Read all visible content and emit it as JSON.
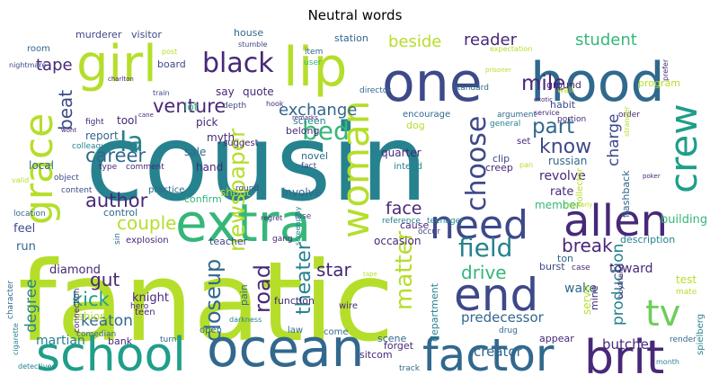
{
  "title": "Neutral words",
  "colors": {
    "background": "#ffffff",
    "palette_viridis": [
      "#440154",
      "#482878",
      "#3e4989",
      "#31688e",
      "#26828e",
      "#1f9e89",
      "#35b779",
      "#6ece58",
      "#b5de2b",
      "#fde725"
    ]
  },
  "words": [
    {
      "text": "cousin",
      "color": "#26828e"
    },
    {
      "text": "fanatic",
      "color": "#b5de2b"
    },
    {
      "text": "ocean",
      "color": "#31688e"
    },
    {
      "text": "school",
      "color": "#1f9e89"
    },
    {
      "text": "factor",
      "color": "#31688e"
    },
    {
      "text": "extra",
      "color": "#35b779"
    },
    {
      "text": "one",
      "color": "#3e4989"
    },
    {
      "text": "hood",
      "color": "#31688e"
    },
    {
      "text": "girl",
      "color": "#b5de2b"
    },
    {
      "text": "lip",
      "color": "#b5de2b"
    },
    {
      "text": "brit",
      "color": "#482878"
    },
    {
      "text": "allen",
      "color": "#482878"
    },
    {
      "text": "need",
      "color": "#3e4989"
    },
    {
      "text": "end",
      "color": "#3e4989"
    },
    {
      "text": "grace",
      "color": "#b5de2b"
    },
    {
      "text": "crew",
      "color": "#1f9e89"
    },
    {
      "text": "tv",
      "color": "#6ece58"
    },
    {
      "text": "woman",
      "color": "#b5de2b"
    },
    {
      "text": "black",
      "color": "#482878"
    },
    {
      "text": "field",
      "color": "#26828e"
    },
    {
      "text": "choose",
      "color": "#3e4989"
    },
    {
      "text": "la",
      "color": "#26828e"
    },
    {
      "text": "bed",
      "color": "#35b779"
    },
    {
      "text": "newspaper",
      "color": "#b5de2b"
    },
    {
      "text": "matter",
      "color": "#b5de2b"
    },
    {
      "text": "closeup",
      "color": "#31688e"
    },
    {
      "text": "road",
      "color": "#482878"
    },
    {
      "text": "theater",
      "color": "#26828e"
    },
    {
      "text": "mile",
      "color": "#482878"
    },
    {
      "text": "part",
      "color": "#31688e"
    },
    {
      "text": "know",
      "color": "#3e4989"
    },
    {
      "text": "venture",
      "color": "#482878"
    },
    {
      "text": "career",
      "color": "#31688e"
    },
    {
      "text": "author",
      "color": "#482878"
    },
    {
      "text": "couple",
      "color": "#b5de2b"
    },
    {
      "text": "kick",
      "color": "#1f9e89"
    },
    {
      "text": "gut",
      "color": "#482878"
    },
    {
      "text": "beat",
      "color": "#3e4989"
    },
    {
      "text": "tape",
      "color": "#482878"
    },
    {
      "text": "beside",
      "color": "#b5de2b"
    },
    {
      "text": "reader",
      "color": "#482878"
    },
    {
      "text": "student",
      "color": "#35b779"
    },
    {
      "text": "exchange",
      "color": "#31688e"
    },
    {
      "text": "drive",
      "color": "#35b779"
    },
    {
      "text": "break",
      "color": "#482878"
    },
    {
      "text": "star",
      "color": "#482878"
    },
    {
      "text": "face",
      "color": "#482878"
    },
    {
      "text": "degree",
      "color": "#26828e"
    },
    {
      "text": "keaton",
      "color": "#31688e"
    },
    {
      "text": "charge",
      "color": "#3e4989"
    },
    {
      "text": "production",
      "color": "#26828e"
    },
    {
      "text": "creator",
      "color": "#31688e"
    },
    {
      "text": "butcher",
      "color": "#482878"
    },
    {
      "text": "predecessor",
      "color": "#31688e"
    },
    {
      "text": "martian",
      "color": "#26828e"
    },
    {
      "text": "wake",
      "color": "#31688e"
    },
    {
      "text": "toward",
      "color": "#482878"
    },
    {
      "text": "diamond",
      "color": "#482878"
    },
    {
      "text": "knight",
      "color": "#482878"
    },
    {
      "text": "fashion",
      "color": "#b5de2b"
    },
    {
      "text": "run",
      "color": "#31688e"
    },
    {
      "text": "feel",
      "color": "#3e4989"
    },
    {
      "text": "local",
      "color": "#31688e"
    },
    {
      "text": "tool",
      "color": "#482878"
    },
    {
      "text": "report",
      "color": "#31688e"
    },
    {
      "text": "colleague",
      "color": "#26828e"
    },
    {
      "text": "hand",
      "color": "#482878"
    },
    {
      "text": "myth",
      "color": "#482878"
    },
    {
      "text": "sale",
      "color": "#31688e"
    },
    {
      "text": "pick",
      "color": "#482878"
    },
    {
      "text": "lot",
      "color": "#35b779"
    },
    {
      "text": "screen",
      "color": "#26828e"
    },
    {
      "text": "belong",
      "color": "#482878"
    },
    {
      "text": "say",
      "color": "#482878"
    },
    {
      "text": "quote",
      "color": "#482878"
    },
    {
      "text": "house",
      "color": "#31688e"
    },
    {
      "text": "visitor",
      "color": "#3e4989"
    },
    {
      "text": "murderer",
      "color": "#3e4989"
    },
    {
      "text": "room",
      "color": "#31688e"
    },
    {
      "text": "nightmare",
      "color": "#3e4989"
    },
    {
      "text": "board",
      "color": "#3e4989"
    },
    {
      "text": "post",
      "color": "#b5de2b"
    },
    {
      "text": "station",
      "color": "#31688e"
    },
    {
      "text": "item",
      "color": "#31688e"
    },
    {
      "text": "user",
      "color": "#35b779"
    },
    {
      "text": "stumble",
      "color": "#3e4989"
    },
    {
      "text": "director",
      "color": "#31688e"
    },
    {
      "text": "standard",
      "color": "#31688e"
    },
    {
      "text": "ground",
      "color": "#482878"
    },
    {
      "text": "habit",
      "color": "#3e4989"
    },
    {
      "text": "program",
      "color": "#b5de2b"
    },
    {
      "text": "russian",
      "color": "#31688e"
    },
    {
      "text": "clip",
      "color": "#3e4989"
    },
    {
      "text": "creep",
      "color": "#482878"
    },
    {
      "text": "revolve",
      "color": "#482878"
    },
    {
      "text": "rate",
      "color": "#482878"
    },
    {
      "text": "flashback",
      "color": "#31688e"
    },
    {
      "text": "building",
      "color": "#35b779"
    },
    {
      "text": "member",
      "color": "#35b779"
    },
    {
      "text": "teenager",
      "color": "#26828e"
    },
    {
      "text": "reference",
      "color": "#26828e"
    },
    {
      "text": "involve",
      "color": "#31688e"
    },
    {
      "text": "shout",
      "color": "#b5de2b"
    },
    {
      "text": "confirm",
      "color": "#35b779"
    },
    {
      "text": "practice",
      "color": "#31688e"
    },
    {
      "text": "comment",
      "color": "#482878"
    },
    {
      "text": "type",
      "color": "#482878"
    },
    {
      "text": "control",
      "color": "#31688e"
    },
    {
      "text": "explosion",
      "color": "#482878"
    },
    {
      "text": "teacher",
      "color": "#3e4989"
    },
    {
      "text": "pain",
      "color": "#31688e"
    },
    {
      "text": "function",
      "color": "#482878"
    },
    {
      "text": "teen",
      "color": "#482878"
    },
    {
      "text": "open",
      "color": "#31688e"
    },
    {
      "text": "law",
      "color": "#31688e"
    },
    {
      "text": "wire",
      "color": "#482878"
    },
    {
      "text": "come",
      "color": "#31688e"
    },
    {
      "text": "scene",
      "color": "#31688e"
    },
    {
      "text": "sitcom",
      "color": "#482878"
    },
    {
      "text": "forget",
      "color": "#482878"
    },
    {
      "text": "track",
      "color": "#31688e"
    },
    {
      "text": "appear",
      "color": "#482878"
    },
    {
      "text": "month",
      "color": "#26828e"
    },
    {
      "text": "render",
      "color": "#31688e"
    },
    {
      "text": "spielberg",
      "color": "#26828e"
    },
    {
      "text": "test",
      "color": "#b5de2b"
    },
    {
      "text": "mate",
      "color": "#b5de2b"
    },
    {
      "text": "case",
      "color": "#482878"
    },
    {
      "text": "mine",
      "color": "#482878"
    },
    {
      "text": "serve",
      "color": "#b5de2b"
    },
    {
      "text": "burst",
      "color": "#3e4989"
    },
    {
      "text": "ton",
      "color": "#31688e"
    },
    {
      "text": "description",
      "color": "#26828e"
    },
    {
      "text": "occasion",
      "color": "#482878"
    },
    {
      "text": "cause",
      "color": "#482878"
    },
    {
      "text": "department",
      "color": "#26828e"
    },
    {
      "text": "drug",
      "color": "#31688e"
    },
    {
      "text": "bank",
      "color": "#482878"
    },
    {
      "text": "turn",
      "color": "#31688e"
    },
    {
      "text": "comedian",
      "color": "#31688e"
    },
    {
      "text": "connection",
      "color": "#482878"
    },
    {
      "text": "cigarette",
      "color": "#26828e"
    },
    {
      "text": "character",
      "color": "#31688e"
    },
    {
      "text": "hero",
      "color": "#482878"
    },
    {
      "text": "location",
      "color": "#31688e"
    },
    {
      "text": "content",
      "color": "#3e4989"
    },
    {
      "text": "object",
      "color": "#3e4989"
    },
    {
      "text": "fight",
      "color": "#482878"
    },
    {
      "text": "suggest",
      "color": "#482878"
    },
    {
      "text": "novel",
      "color": "#31688e"
    },
    {
      "text": "fact",
      "color": "#3e4989"
    },
    {
      "text": "round",
      "color": "#3e4989"
    },
    {
      "text": "quarter",
      "color": "#482878"
    },
    {
      "text": "intend",
      "color": "#26828e"
    },
    {
      "text": "encourage",
      "color": "#31688e"
    },
    {
      "text": "dog",
      "color": "#b5de2b"
    },
    {
      "text": "argument",
      "color": "#31688e"
    },
    {
      "text": "general",
      "color": "#26828e"
    },
    {
      "text": "set",
      "color": "#482878"
    },
    {
      "text": "collector",
      "color": "#b5de2b"
    },
    {
      "text": "portion",
      "color": "#482878"
    },
    {
      "text": "service",
      "color": "#482878"
    },
    {
      "text": "exotic",
      "color": "#482878"
    },
    {
      "text": "order",
      "color": "#482878"
    },
    {
      "text": "prefer",
      "color": "#482878"
    },
    {
      "text": "expectation",
      "color": "#b5de2b"
    },
    {
      "text": "prisoner",
      "color": "#b5de2b"
    },
    {
      "text": "wall",
      "color": "#b5de2b"
    },
    {
      "text": "train",
      "color": "#3e4989"
    },
    {
      "text": "depth",
      "color": "#3e4989"
    },
    {
      "text": "charlton",
      "color": "#482878"
    },
    {
      "text": "hook",
      "color": "#482878"
    },
    {
      "text": "remarks",
      "color": "#482878"
    },
    {
      "text": "stranger",
      "color": "#b5de2b"
    },
    {
      "text": "regularly",
      "color": "#b5de2b"
    },
    {
      "text": "poker",
      "color": "#482878"
    },
    {
      "text": "gang",
      "color": "#482878"
    },
    {
      "text": "lose",
      "color": "#3e4989"
    },
    {
      "text": "regret",
      "color": "#482878"
    },
    {
      "text": "occur",
      "color": "#3e4989"
    },
    {
      "text": "sin",
      "color": "#31688e"
    },
    {
      "text": "boyfriend",
      "color": "#482878"
    },
    {
      "text": "darkness",
      "color": "#26828e"
    },
    {
      "text": "detectives",
      "color": "#26828e"
    },
    {
      "text": "screenplay",
      "color": "#26828e"
    },
    {
      "text": "valid",
      "color": "#b5de2b"
    },
    {
      "text": "wont",
      "color": "#482878"
    },
    {
      "text": "pan",
      "color": "#b5de2b"
    },
    {
      "text": "cane",
      "color": "#482878"
    },
    {
      "text": "tape",
      "color": "#b5de2b"
    }
  ]
}
